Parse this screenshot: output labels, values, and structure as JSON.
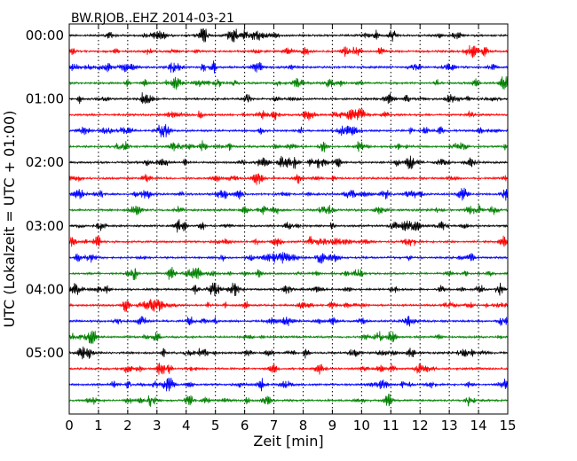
{
  "chart_data": {
    "type": "line",
    "title": "BW.RJOB..EHZ 2014-03-21",
    "xlabel": "Zeit  [min]",
    "ylabel": "UTC (Lokalzeit = UTC + 01:00)",
    "xlim": [
      0,
      15
    ],
    "x_ticks": [
      "0",
      "1",
      "2",
      "3",
      "4",
      "5",
      "6",
      "7",
      "8",
      "9",
      "10",
      "11",
      "12",
      "13",
      "14",
      "15"
    ],
    "y_ticks": [
      "00:00",
      "01:00",
      "02:00",
      "03:00",
      "04:00",
      "05:00"
    ],
    "trace_interval_min": 15,
    "trace_count": 24,
    "trace_colors": [
      "#000000",
      "#ff0000",
      "#0000ff",
      "#008000"
    ],
    "grid": "vertical dotted at each minute",
    "series_note": "seismogram traces, one per 15-minute interval from 00:00 to 05:45 UTC"
  }
}
